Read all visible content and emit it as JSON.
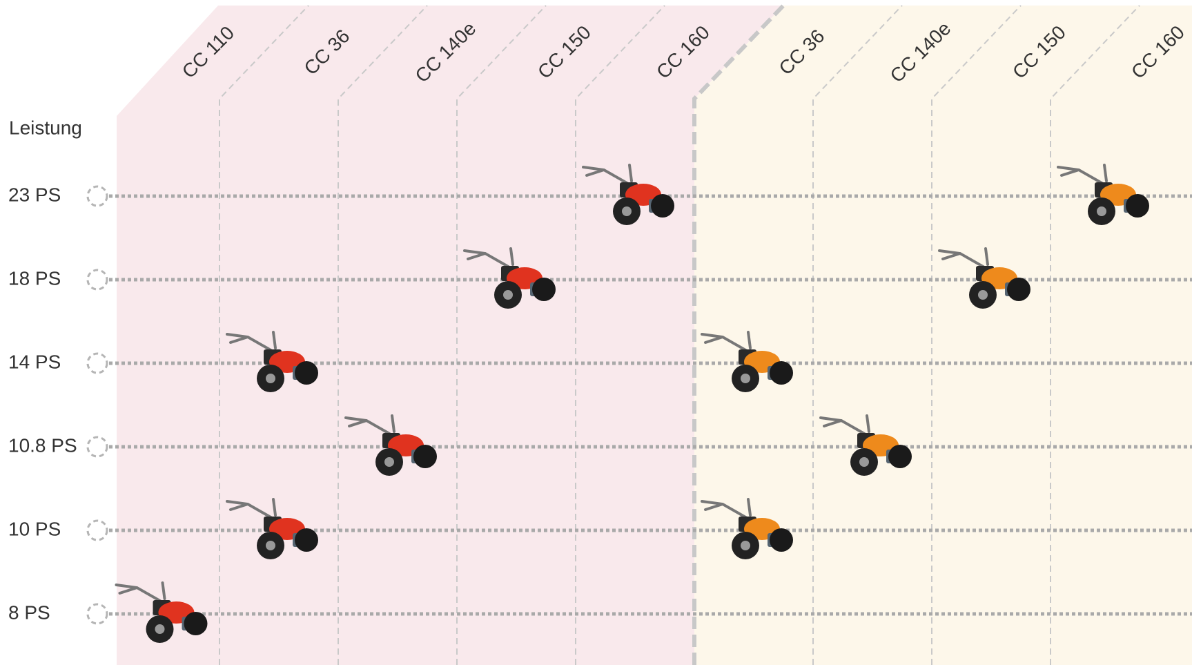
{
  "chart_data": {
    "type": "machine-grid",
    "ylabel": "Leistung",
    "yticks": [
      {
        "value": 8,
        "label": "8 PS"
      },
      {
        "value": 10,
        "label": "10 PS"
      },
      {
        "value": 10.8,
        "label": "10.8 PS"
      },
      {
        "value": 14,
        "label": "14 PS"
      },
      {
        "value": 18,
        "label": "18 PS"
      },
      {
        "value": 23,
        "label": "23 PS"
      }
    ],
    "groups": [
      {
        "background": "#f9e9ec",
        "color": "#e0331f",
        "categories": [
          "CC 110",
          "CC 36",
          "CC 140e",
          "CC 150",
          "CC 160"
        ],
        "values": [
          [
            8
          ],
          [
            14,
            10
          ],
          [
            10.8
          ],
          [
            18
          ],
          [
            23
          ]
        ]
      },
      {
        "background": "#fdf7ea",
        "color": "#ee8a1c",
        "categories": [
          "CC 36",
          "CC 140e",
          "CC 150",
          "CC 160"
        ],
        "values": [
          [
            14,
            10
          ],
          [
            10.8
          ],
          [
            18
          ],
          [
            23
          ]
        ]
      }
    ],
    "grid": true
  }
}
